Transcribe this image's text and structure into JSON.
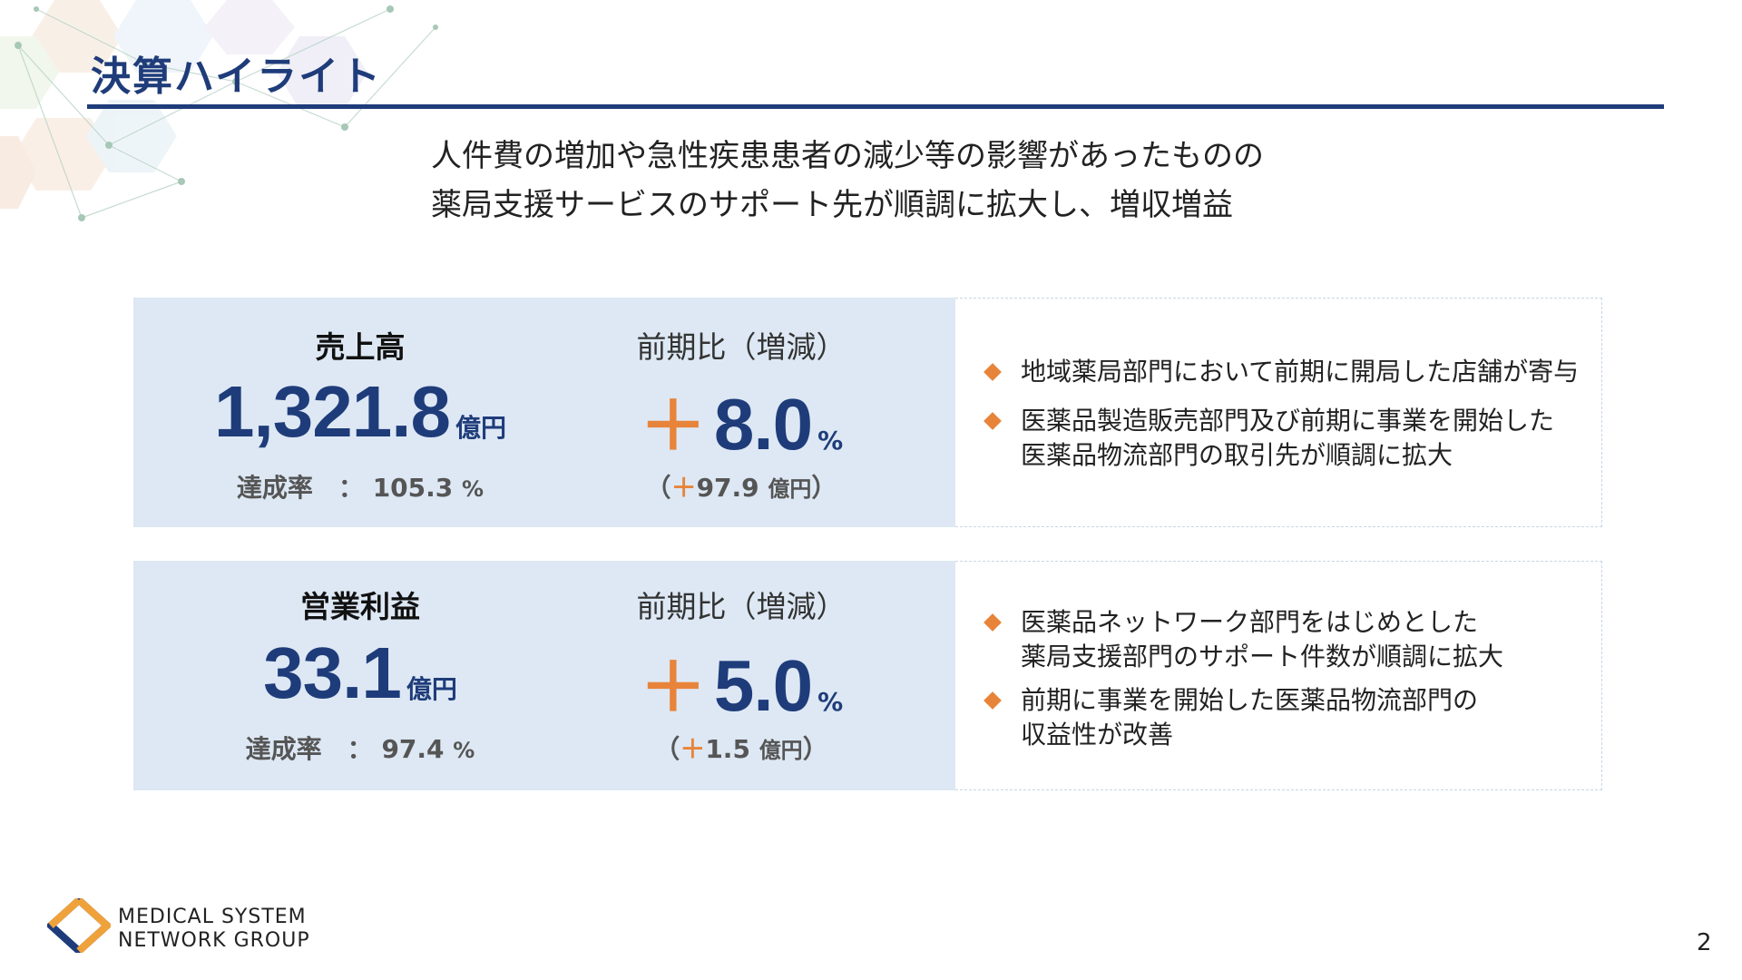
{
  "title": "決算ハイライト",
  "lead": {
    "line1": "人件費の増加や急性疾患患者の減少等の影響があったものの",
    "line2": "薬局支援サービスのサポート先が順調に拡大し、増収増益"
  },
  "sales": {
    "label": "売上高",
    "value": "1,321.8",
    "unit": "億円",
    "achievement_label": "達成率　：",
    "achievement_value": "105.3",
    "achievement_unit": "%",
    "yoy_label": "前期比（増減）",
    "yoy_sign": "＋",
    "yoy_value": "8.0",
    "yoy_unit": "%",
    "diff_open": "（",
    "diff_sign": "＋",
    "diff_value": "97.9",
    "diff_unit": "億円",
    "diff_close": "）",
    "bullets": [
      [
        "地域薬局部門において前期に開局した店舗が寄与"
      ],
      [
        "医薬品製造販売部門及び前期に事業を開始した",
        "医薬品物流部門の取引先が順調に拡大"
      ]
    ]
  },
  "operating_profit": {
    "label": "営業利益",
    "value": "33.1",
    "unit": "億円",
    "achievement_label": "達成率　：",
    "achievement_value": "97.4",
    "achievement_unit": "%",
    "yoy_label": "前期比（増減）",
    "yoy_sign": "＋",
    "yoy_value": "5.0",
    "yoy_unit": "%",
    "diff_open": "（",
    "diff_sign": "＋",
    "diff_value": "1.5",
    "diff_unit": "億円",
    "diff_close": "）",
    "bullets": [
      [
        "医薬品ネットワーク部門をはじめとした",
        "薬局支援部門のサポート件数が順調に拡大"
      ],
      [
        "前期に事業を開始した医薬品物流部門の",
        "収益性が改善"
      ]
    ]
  },
  "footer": {
    "logo_line1": "MEDICAL SYSTEM",
    "logo_line2": "NETWORK GROUP",
    "page_number": "2"
  },
  "colors": {
    "navy": "#1f3c7a",
    "orange": "#e8843a",
    "panel_blue": "#dde8f4"
  },
  "icons": {
    "bullet": "orange-diamond-icon",
    "logo": "msng-logo-icon",
    "decoration": "hexagon-network-decoration"
  }
}
